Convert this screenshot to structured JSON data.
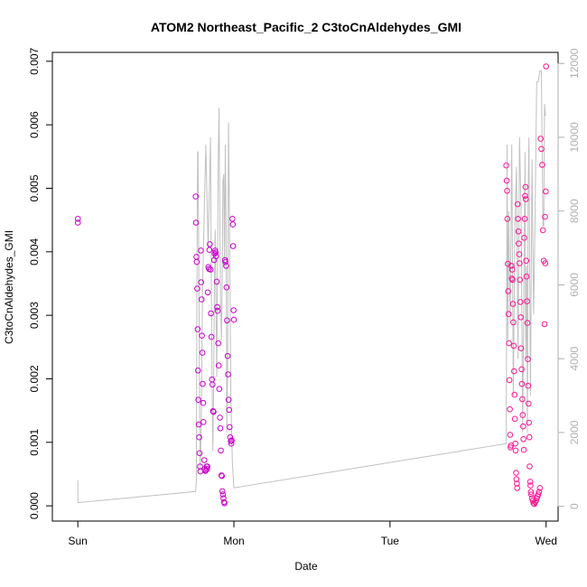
{
  "chart_data": {
    "type": "scatter",
    "title": "ATOM2 Northeast_Pacific_2 C3toCnAldehydes_GMI",
    "xlabel": "Date",
    "ylabel": "C3toCnAldehydes_GMI",
    "x_ticks": [
      {
        "label": "Sun",
        "value": 0
      },
      {
        "label": "Mon",
        "value": 1
      },
      {
        "label": "Tue",
        "value": 2
      },
      {
        "label": "Wed",
        "value": 3
      }
    ],
    "xlim": [
      -0.163,
      3.077
    ],
    "ylim": [
      -0.00024,
      0.00714
    ],
    "y_ticks": [
      {
        "label": "0.000",
        "value": 0
      },
      {
        "label": "0.001",
        "value": 0.001
      },
      {
        "label": "0.002",
        "value": 0.002
      },
      {
        "label": "0.003",
        "value": 0.003
      },
      {
        "label": "0.004",
        "value": 0.004
      },
      {
        "label": "0.005",
        "value": 0.005
      },
      {
        "label": "0.006",
        "value": 0.006
      },
      {
        "label": "0.007",
        "value": 0.007
      }
    ],
    "y2lim": [
      -400,
      12300
    ],
    "y2_ticks": [
      {
        "label": "0",
        "value": 0
      },
      {
        "label": "2000",
        "value": 2000
      },
      {
        "label": "4000",
        "value": 4000
      },
      {
        "label": "6000",
        "value": 6000
      },
      {
        "label": "8000",
        "value": 8000
      },
      {
        "label": "10000",
        "value": 10000
      },
      {
        "label": "12000",
        "value": 12000
      }
    ],
    "grid": false,
    "colors": {
      "points_day1": "#cc00cc",
      "points_day3": "#ff1493",
      "altitude_line": "#c0c0c0"
    },
    "series": [
      {
        "role": "points",
        "color": "#cc00cc",
        "x": [
          0.0,
          0.0,
          0.755,
          0.757,
          0.76,
          0.762,
          0.765,
          0.768,
          0.77,
          0.772,
          0.775,
          0.778,
          0.78,
          0.783,
          0.785,
          0.788,
          0.79,
          0.793,
          0.795,
          0.798,
          0.8,
          0.803,
          0.805,
          0.81,
          0.813,
          0.817,
          0.82,
          0.825,
          0.828,
          0.83,
          0.833,
          0.837,
          0.84,
          0.843,
          0.846,
          0.85,
          0.853,
          0.856,
          0.86,
          0.863,
          0.866,
          0.87,
          0.873,
          0.876,
          0.88,
          0.883,
          0.886,
          0.89,
          0.893,
          0.896,
          0.9,
          0.903,
          0.906,
          0.91,
          0.913,
          0.916,
          0.92,
          0.923,
          0.926,
          0.93,
          0.933,
          0.936,
          0.94,
          0.943,
          0.946,
          0.95,
          0.953,
          0.956,
          0.96,
          0.963,
          0.966,
          0.97,
          0.973,
          0.976,
          0.98,
          0.983,
          0.986,
          0.99,
          0.993,
          0.995,
          0.998,
          1.0
        ],
        "y": [
          0.00452,
          0.00446,
          0.00487,
          0.00446,
          0.00392,
          0.00384,
          0.00342,
          0.00278,
          0.00213,
          0.00167,
          0.00128,
          0.00108,
          0.00083,
          0.00062,
          0.00054,
          0.00402,
          0.00352,
          0.00325,
          0.00268,
          0.00241,
          0.00192,
          0.00162,
          0.00132,
          0.00072,
          0.00058,
          0.00055,
          0.00056,
          0.00062,
          0.00058,
          0.00062,
          0.00336,
          0.00376,
          0.00373,
          0.00403,
          0.00412,
          0.00372,
          0.00303,
          0.00266,
          0.00199,
          0.00191,
          0.00149,
          0.00148,
          0.00387,
          0.00397,
          0.00402,
          0.00399,
          0.00393,
          0.00353,
          0.00313,
          0.00307,
          0.00256,
          0.00221,
          0.00184,
          0.00139,
          0.00122,
          0.00087,
          0.00048,
          0.00047,
          0.00023,
          0.00018,
          0.00012,
          6e-05,
          4e-05,
          0.00387,
          0.00384,
          0.00378,
          0.00344,
          0.00292,
          0.00236,
          0.00207,
          0.00167,
          0.00151,
          0.00124,
          0.00108,
          0.00102,
          0.00098,
          0.00103,
          0.00452,
          0.00443,
          0.00409,
          0.00308,
          0.00293
        ]
      },
      {
        "role": "points",
        "color": "#ff1493",
        "x": [
          2.745,
          2.748,
          2.75,
          2.752,
          2.755,
          2.757,
          2.76,
          2.762,
          2.765,
          2.768,
          2.77,
          2.772,
          2.775,
          2.778,
          2.78,
          2.783,
          2.785,
          2.788,
          2.79,
          2.793,
          2.795,
          2.798,
          2.8,
          2.803,
          2.805,
          2.808,
          2.81,
          2.813,
          2.815,
          2.818,
          2.82,
          2.823,
          2.825,
          2.828,
          2.83,
          2.833,
          2.835,
          2.838,
          2.84,
          2.843,
          2.845,
          2.848,
          2.85,
          2.853,
          2.855,
          2.858,
          2.86,
          2.863,
          2.865,
          2.868,
          2.87,
          2.873,
          2.875,
          2.878,
          2.88,
          2.883,
          2.885,
          2.888,
          2.89,
          2.893,
          2.895,
          2.898,
          2.9,
          2.903,
          2.905,
          2.91,
          2.915,
          2.92,
          2.925,
          2.93,
          2.935,
          2.94,
          2.945,
          2.95,
          2.955,
          2.96,
          2.965,
          2.97,
          2.975,
          2.98,
          2.985,
          2.99,
          2.993,
          2.995,
          2.998,
          3.0
        ],
        "y": [
          0.00536,
          0.00512,
          0.00496,
          0.00452,
          0.00381,
          0.00338,
          0.00302,
          0.00256,
          0.00198,
          0.00152,
          0.00112,
          0.00092,
          0.00095,
          0.00378,
          0.00358,
          0.00372,
          0.00356,
          0.00318,
          0.00289,
          0.00252,
          0.00212,
          0.00175,
          0.00137,
          0.00098,
          0.00087,
          0.00052,
          0.00042,
          0.00035,
          0.00028,
          0.00475,
          0.00452,
          0.00432,
          0.00413,
          0.00396,
          0.00382,
          0.00356,
          0.00321,
          0.00297,
          0.00248,
          0.00215,
          0.00192,
          0.00168,
          0.00143,
          0.00125,
          0.00105,
          0.00088,
          0.00422,
          0.00452,
          0.00488,
          0.00502,
          0.00483,
          0.00386,
          0.00361,
          0.00322,
          0.00288,
          0.00231,
          0.00189,
          0.00161,
          0.00131,
          0.00108,
          0.00062,
          0.00038,
          0.00032,
          0.00022,
          0.00018,
          0.00012,
          8e-05,
          4e-05,
          3e-05,
          6e-05,
          8e-05,
          0.00012,
          0.00015,
          0.00018,
          0.00022,
          0.00028,
          0.00578,
          0.00562,
          0.00537,
          0.00434,
          0.00386,
          0.00286,
          0.00455,
          0.00382,
          0.00495,
          0.00692
        ]
      },
      {
        "role": "altitude-line",
        "axis": "right",
        "color": "#c0c0c0",
        "x": [
          0.0,
          0.0,
          0.755,
          0.758,
          0.76,
          0.762,
          0.765,
          0.768,
          0.77,
          0.772,
          0.775,
          0.778,
          0.78,
          0.784,
          0.79,
          0.8,
          0.81,
          0.82,
          0.835,
          0.85,
          0.855,
          0.86,
          0.865,
          0.87,
          0.875,
          0.88,
          0.89,
          0.9,
          0.905,
          0.91,
          0.915,
          0.92,
          0.925,
          0.93,
          0.935,
          0.94,
          0.945,
          0.95,
          0.955,
          0.96,
          0.965,
          0.97,
          0.975,
          0.98,
          0.99,
          1.0,
          2.745,
          2.75,
          2.755,
          2.76,
          2.77,
          2.78,
          2.79,
          2.8,
          2.81,
          2.82,
          2.83,
          2.84,
          2.85,
          2.86,
          2.865,
          2.87,
          2.875,
          2.88,
          2.885,
          2.89,
          2.9,
          2.91,
          2.92,
          2.93,
          2.94,
          2.95,
          2.96,
          2.97,
          2.98,
          2.985,
          2.99,
          2.995,
          3.0
        ],
        "y": [
          700,
          100,
          400,
          600,
          800,
          5000,
          7800,
          9600,
          9600,
          8400,
          6500,
          4500,
          2600,
          1000,
          2000,
          6000,
          8000,
          9800,
          7000,
          10000,
          6000,
          3500,
          1500,
          3000,
          6000,
          7500,
          3500,
          9500,
          10800,
          7500,
          5500,
          4500,
          6000,
          8800,
          9000,
          6500,
          9800,
          7500,
          2000,
          4000,
          10400,
          8500,
          6000,
          3000,
          1200,
          500,
          1700,
          9800,
          4500,
          8000,
          5000,
          9800,
          3000,
          7500,
          9200,
          4000,
          10000,
          8000,
          2000,
          7000,
          9600,
          4000,
          6500,
          2000,
          8200,
          10000,
          3000,
          9400,
          5200,
          8000,
          11500,
          11500,
          11800,
          11800,
          7600,
          7600,
          10900,
          10600,
          10600
        ]
      }
    ]
  }
}
